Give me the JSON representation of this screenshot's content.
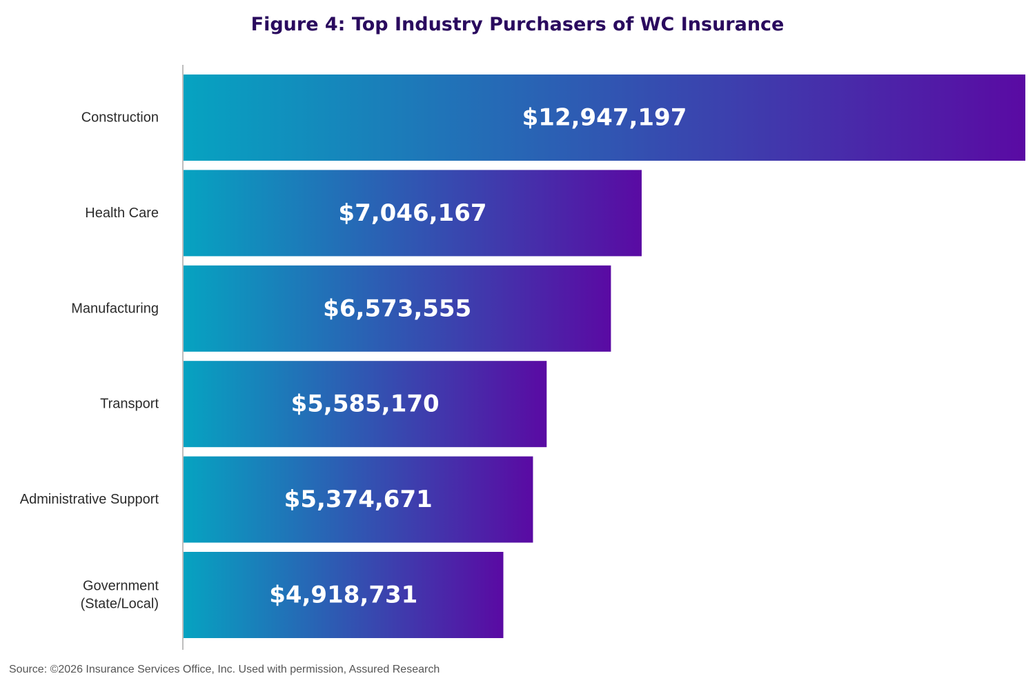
{
  "chart_data": {
    "type": "bar",
    "orientation": "horizontal",
    "title": "Figure 4: Top Industry Purchasers of WC Insurance",
    "categories": [
      "Construction",
      "Health Care",
      "Manufacturing",
      "Transport",
      "Administrative Support",
      "Government (State/Local)"
    ],
    "category_lines": [
      [
        "Construction"
      ],
      [
        "Health Care"
      ],
      [
        "Manufacturing"
      ],
      [
        "Transport"
      ],
      [
        "Administrative Support"
      ],
      [
        "Government",
        "(State/Local)"
      ]
    ],
    "values": [
      12947197,
      7046167,
      6573555,
      5585170,
      5374671,
      4918731
    ],
    "value_labels": [
      "$12,947,197",
      "$7,046,167",
      "$6,573,555",
      "$5,585,170",
      "$5,374,671",
      "$4,918,731"
    ],
    "xlim": [
      0,
      12947197
    ],
    "grid": false,
    "legend": "none",
    "colors": {
      "gradient_start": "#06a3c1",
      "gradient_end": "#5a0aa3",
      "axis": "#bdbdbd",
      "title": "#2a0a5e"
    }
  },
  "source": "Source: ©2026 Insurance Services Office, Inc. Used with permission, Assured Research"
}
